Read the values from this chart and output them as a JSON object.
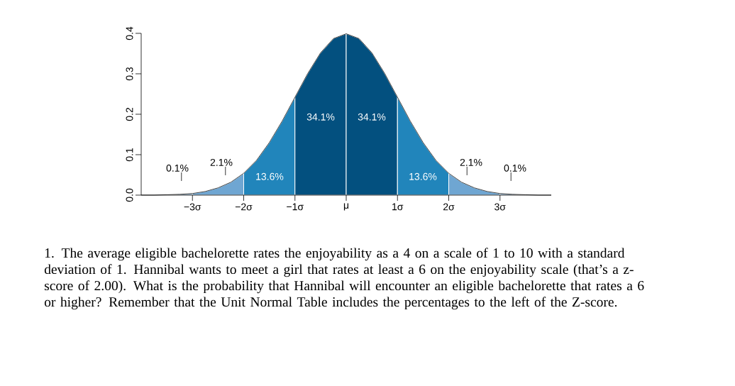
{
  "chart_data": {
    "type": "area",
    "xlim": [
      -4,
      4
    ],
    "ylim": [
      0,
      0.4
    ],
    "xticks": [
      {
        "value": -3,
        "label": "−3σ"
      },
      {
        "value": -2,
        "label": "−2σ"
      },
      {
        "value": -1,
        "label": "−1σ"
      },
      {
        "value": 0,
        "label": "μ"
      },
      {
        "value": 1,
        "label": "1σ"
      },
      {
        "value": 2,
        "label": "2σ"
      },
      {
        "value": 3,
        "label": "3σ"
      }
    ],
    "yticks": [
      {
        "value": 0,
        "label": "0.0"
      },
      {
        "value": 0.1,
        "label": "0.1"
      },
      {
        "value": 0.2,
        "label": "0.2"
      },
      {
        "value": 0.3,
        "label": "0.3"
      },
      {
        "value": 0.4,
        "label": "0.4"
      }
    ],
    "series": [
      {
        "color": "#6fa6d2",
        "x": [
          -4,
          -3.75,
          -3.5,
          -3.25,
          -3
        ],
        "values": [
          0.0,
          0.0,
          0.001,
          0.002,
          0.004
        ]
      },
      {
        "color": "#6fa6d2",
        "x": [
          -3,
          -2.75,
          -2.5,
          -2.25,
          -2
        ],
        "values": [
          0.004,
          0.009,
          0.018,
          0.032,
          0.054
        ]
      },
      {
        "color": "#2185bb",
        "x": [
          -2,
          -1.75,
          -1.5,
          -1.25,
          -1
        ],
        "values": [
          0.054,
          0.086,
          0.13,
          0.183,
          0.242
        ]
      },
      {
        "color": "#03507f",
        "x": [
          -1,
          -0.75,
          -0.5,
          -0.25,
          0
        ],
        "values": [
          0.242,
          0.301,
          0.352,
          0.387,
          0.399
        ]
      },
      {
        "color": "#03507f",
        "x": [
          0,
          0.25,
          0.5,
          0.75,
          1
        ],
        "values": [
          0.399,
          0.387,
          0.352,
          0.301,
          0.242
        ]
      },
      {
        "color": "#2185bb",
        "x": [
          1,
          1.25,
          1.5,
          1.75,
          2
        ],
        "values": [
          0.242,
          0.183,
          0.13,
          0.086,
          0.054
        ]
      },
      {
        "color": "#6fa6d2",
        "x": [
          2,
          2.25,
          2.5,
          2.75,
          3
        ],
        "values": [
          0.054,
          0.032,
          0.018,
          0.009,
          0.004
        ]
      },
      {
        "color": "#6fa6d2",
        "x": [
          3,
          3.25,
          3.5,
          3.75,
          4
        ],
        "values": [
          0.004,
          0.002,
          0.001,
          0.0,
          0.0
        ]
      },
      {
        "type": "line",
        "color": "#333333",
        "x": [
          -4,
          -3.75,
          -3.5,
          -3.25,
          -3,
          -2.75,
          -2.5,
          -2.25,
          -2,
          -1.75,
          -1.5,
          -1.25,
          -1,
          -0.75,
          -0.5,
          -0.25,
          0,
          0.25,
          0.5,
          0.75,
          1,
          1.25,
          1.5,
          1.75,
          2,
          2.25,
          2.5,
          2.75,
          3,
          3.25,
          3.5,
          3.75,
          4
        ],
        "values": [
          0.0,
          0.0,
          0.001,
          0.002,
          0.004,
          0.009,
          0.018,
          0.032,
          0.054,
          0.086,
          0.13,
          0.183,
          0.242,
          0.301,
          0.352,
          0.387,
          0.399,
          0.387,
          0.352,
          0.301,
          0.242,
          0.183,
          0.13,
          0.086,
          0.054,
          0.032,
          0.018,
          0.009,
          0.004,
          0.002,
          0.001,
          0.0,
          0.0
        ]
      }
    ],
    "annotations": [
      "0.1%",
      "2.1%",
      "13.6%",
      "34.1%",
      "34.1%",
      "13.6%",
      "2.1%",
      "0.1%",
      "1.  The average eligible bachelorette rates the enjoyability as a 4 on a scale of 1 to 10 with a standard deviation of 1. Hannibal wants to meet a girl that rates at least a 6 on the enjoyability scale (that’s a z-score of 2.00). What is the probability that Hannibal will encounter an eligible bachelorette that rates a 6 or higher? Remember that the Unit Normal Table includes the percentages to the left of the Z-score."
    ]
  }
}
